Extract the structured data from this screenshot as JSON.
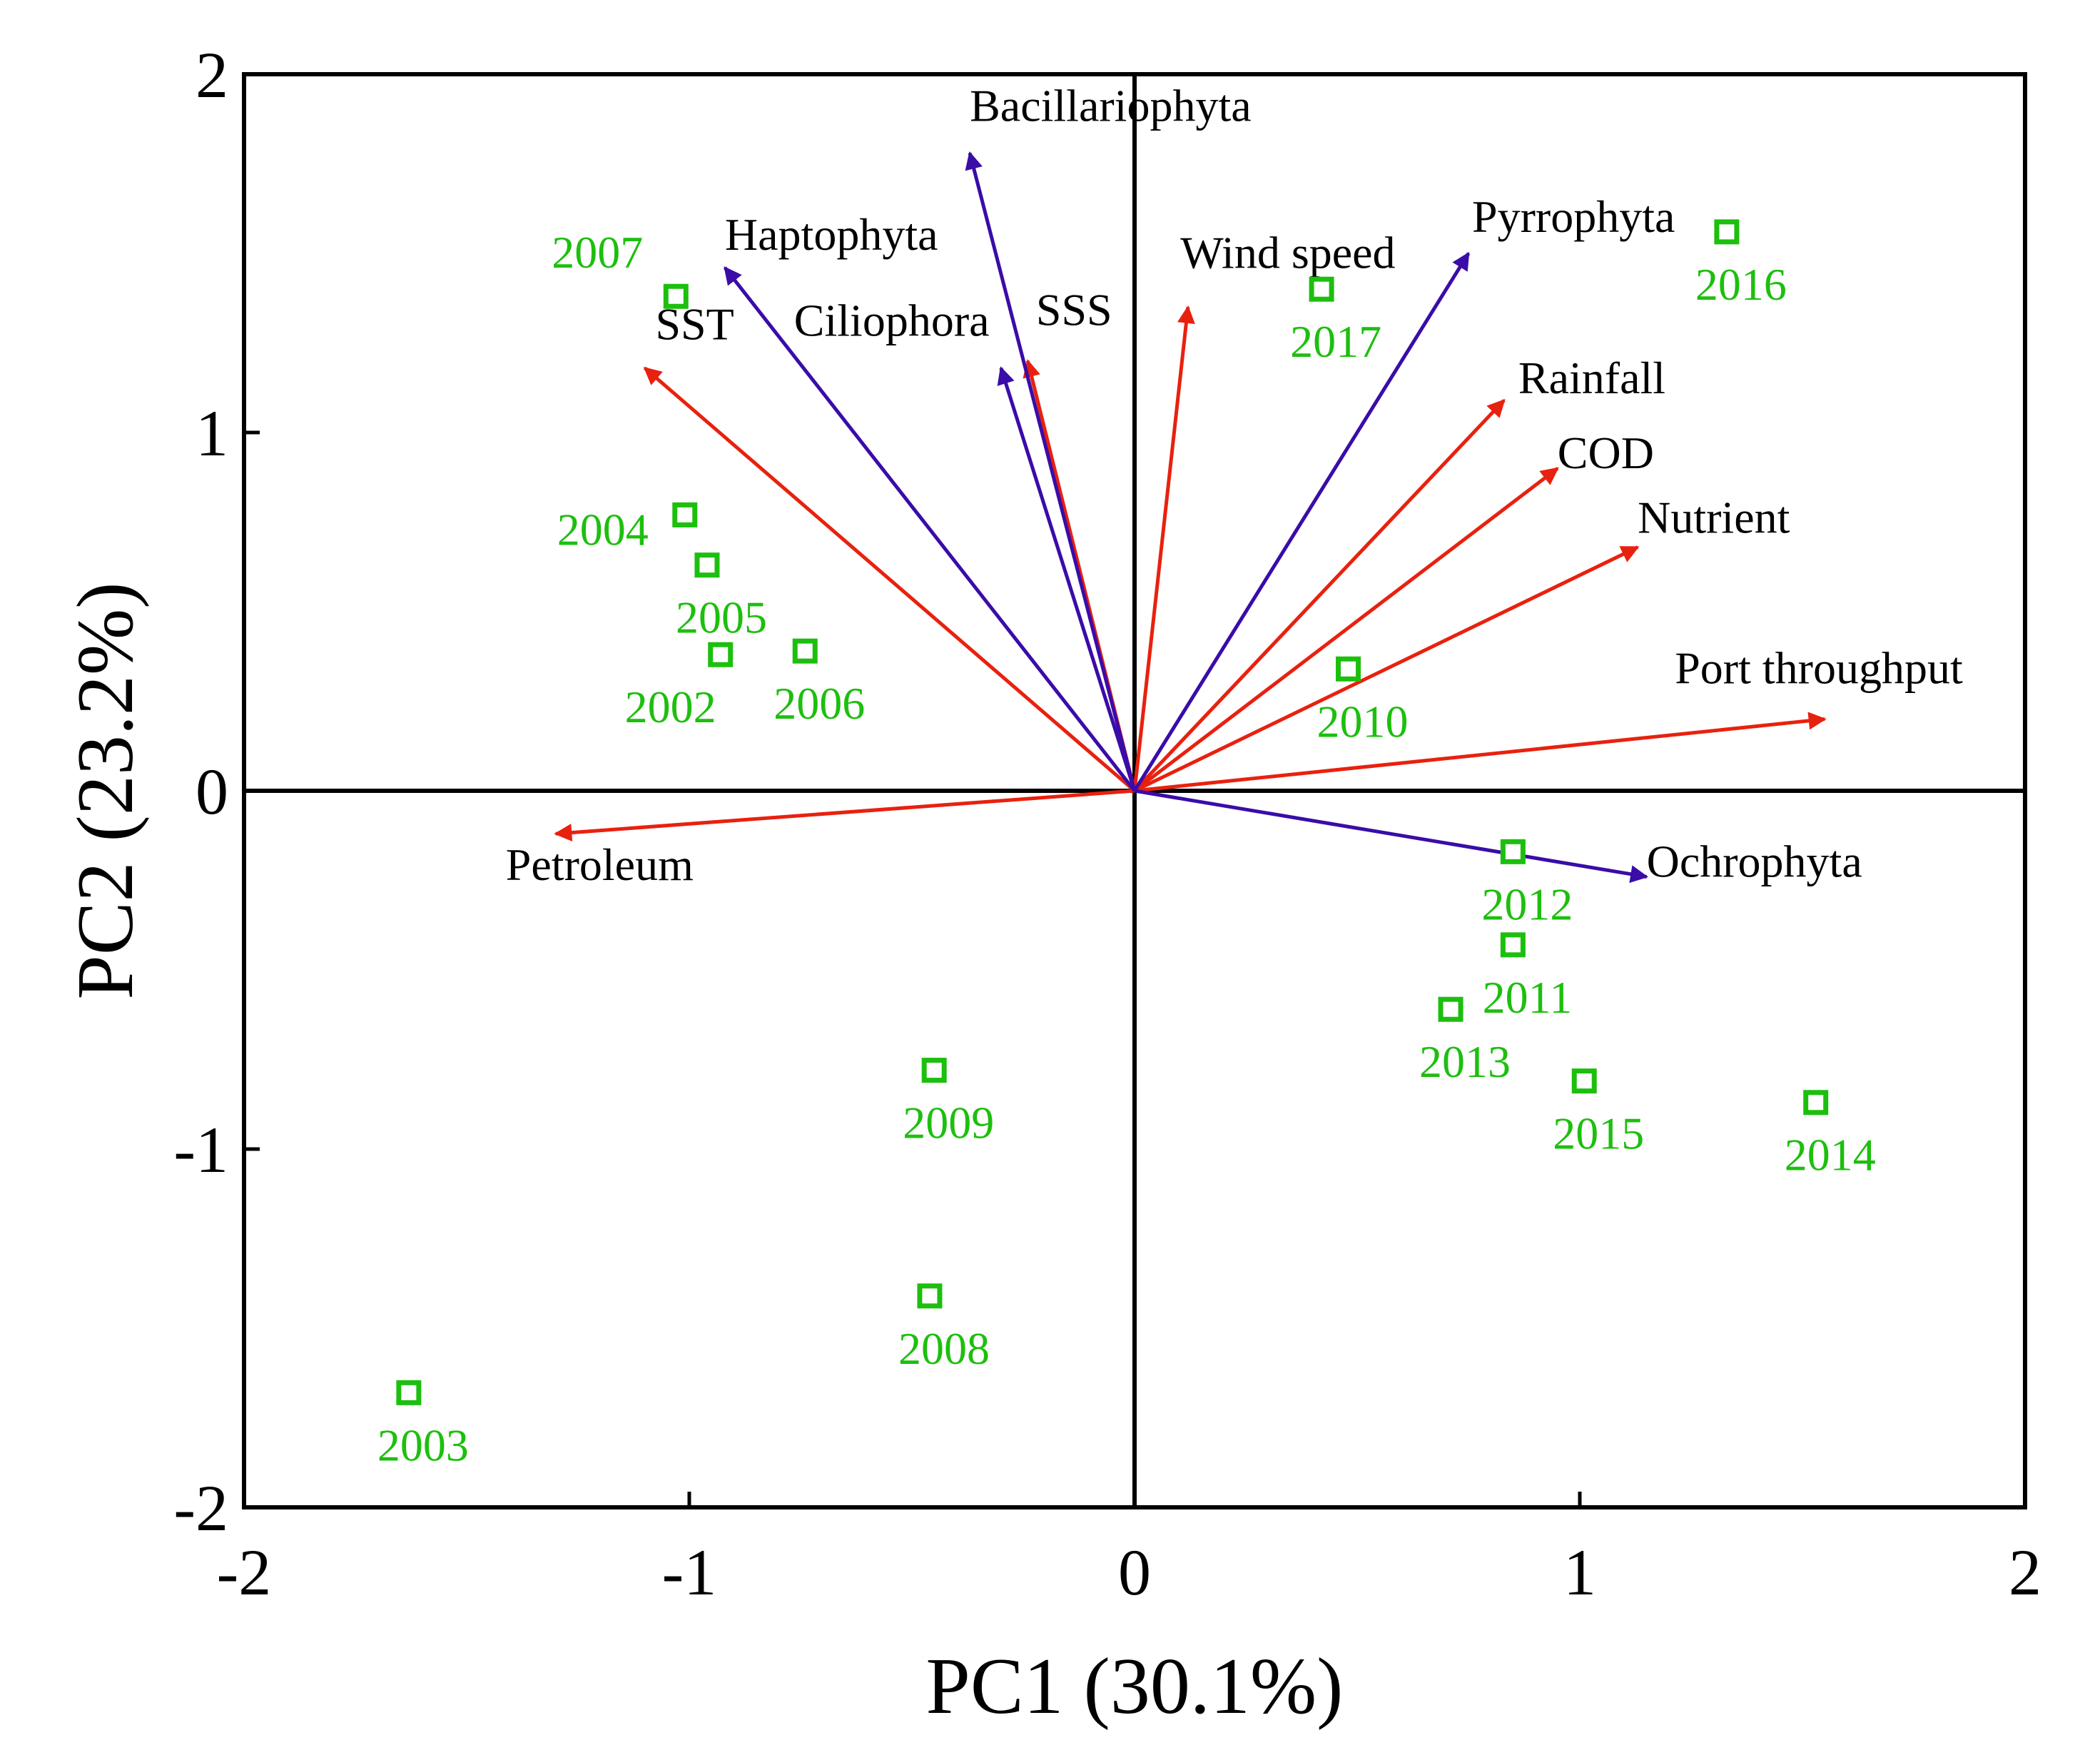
{
  "chart_data": {
    "type": "biplot",
    "xlabel": "PC1 (30.1%)",
    "ylabel": "PC2 (23.2%)",
    "xlim": [
      -2,
      2
    ],
    "ylim": [
      -2,
      2
    ],
    "xticks": [
      "-2",
      "-1",
      "0",
      "1",
      "2"
    ],
    "yticks": [
      "-2",
      "-1",
      "0",
      "1",
      "2"
    ],
    "colors": {
      "environment_vector": "#E8210F",
      "taxon_vector": "#3A0CA8",
      "sample_point": "#1DBF0E",
      "axis": "#000000"
    },
    "environment_vectors": [
      {
        "name": "SST",
        "x": -1.1,
        "y": 1.18
      },
      {
        "name": "SSS",
        "x": -0.24,
        "y": 1.2
      },
      {
        "name": "Wind speed",
        "x": 0.12,
        "y": 1.35
      },
      {
        "name": "Rainfall",
        "x": 0.83,
        "y": 1.09
      },
      {
        "name": "COD",
        "x": 0.95,
        "y": 0.9
      },
      {
        "name": "Nutrient",
        "x": 1.13,
        "y": 0.68
      },
      {
        "name": "Port throughput",
        "x": 1.55,
        "y": 0.2
      },
      {
        "name": "Petroleum",
        "x": -1.3,
        "y": -0.12
      }
    ],
    "taxon_vectors": [
      {
        "name": "Bacillariophyta",
        "x": -0.37,
        "y": 1.78
      },
      {
        "name": "Haptophyta",
        "x": -0.92,
        "y": 1.46
      },
      {
        "name": "Ciliophora",
        "x": -0.3,
        "y": 1.18
      },
      {
        "name": "Pyrrophyta",
        "x": 0.75,
        "y": 1.5
      },
      {
        "name": "Ochrophyta",
        "x": 1.15,
        "y": -0.24
      }
    ],
    "samples": [
      {
        "label": "2002",
        "x": -0.93,
        "y": 0.38
      },
      {
        "label": "2003",
        "x": -1.63,
        "y": -1.68
      },
      {
        "label": "2004",
        "x": -1.01,
        "y": 0.77
      },
      {
        "label": "2005",
        "x": -0.96,
        "y": 0.63
      },
      {
        "label": "2006",
        "x": -0.74,
        "y": 0.39
      },
      {
        "label": "2007",
        "x": -1.03,
        "y": 1.38
      },
      {
        "label": "2008",
        "x": -0.46,
        "y": -1.41
      },
      {
        "label": "2009",
        "x": -0.45,
        "y": -0.78
      },
      {
        "label": "2010",
        "x": 0.48,
        "y": 0.34
      },
      {
        "label": "2011",
        "x": 0.85,
        "y": -0.43
      },
      {
        "label": "2012",
        "x": 0.85,
        "y": -0.17
      },
      {
        "label": "2013",
        "x": 0.71,
        "y": -0.61
      },
      {
        "label": "2014",
        "x": 1.53,
        "y": -0.87
      },
      {
        "label": "2015",
        "x": 1.01,
        "y": -0.81
      },
      {
        "label": "2016",
        "x": 1.33,
        "y": 1.56
      },
      {
        "label": "2017",
        "x": 0.42,
        "y": 1.4
      }
    ]
  }
}
